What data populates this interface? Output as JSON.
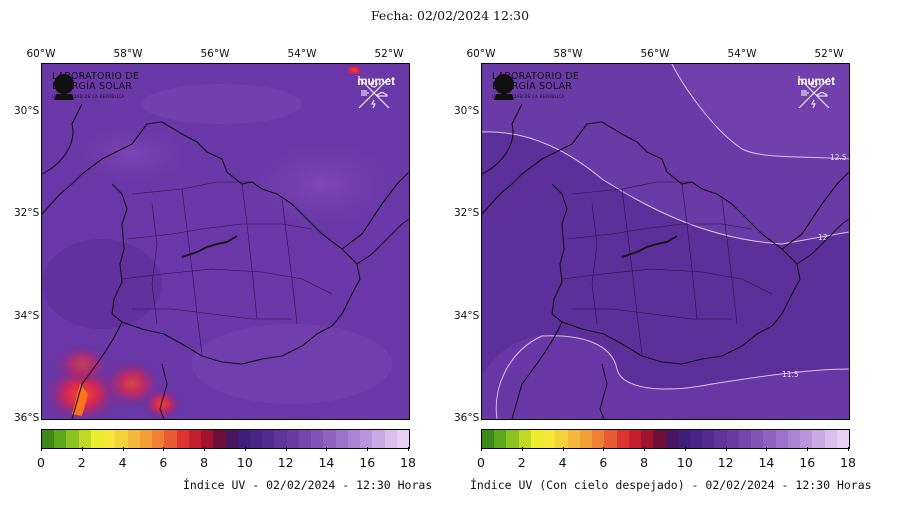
{
  "header": {
    "date_label": "Fecha: 02/02/2024 12:30"
  },
  "longitudes": [
    "60°W",
    "58°W",
    "56°W",
    "54°W",
    "52°W"
  ],
  "latitudes": [
    "30°S",
    "32°S",
    "34°S",
    "36°S"
  ],
  "logos": {
    "les_line1": "LABORATORIO DE",
    "les_line2": "ENERGÍA SOLAR",
    "les_line3": "UNIVERSIDAD DE LA REPÚBLICA",
    "inumet": "inumet"
  },
  "colorbar": {
    "ticks": [
      "0",
      "2",
      "4",
      "6",
      "8",
      "10",
      "12",
      "14",
      "16",
      "18"
    ],
    "colors": [
      "#3d8a1a",
      "#5ea81d",
      "#8cc21f",
      "#c2d826",
      "#ecec2e",
      "#f6e63a",
      "#f5d23a",
      "#f4b93a",
      "#f29d36",
      "#ee7f33",
      "#e85a31",
      "#dc3530",
      "#c41f2e",
      "#a3142c",
      "#6e0f3a",
      "#4a1460",
      "#3f1f7a",
      "#4a2486",
      "#552b90",
      "#5f3398",
      "#6a3ca2",
      "#7647ad",
      "#8254b7",
      "#8f62c1",
      "#9d72ca",
      "#ab83d3",
      "#bb95dc",
      "#cba9e5",
      "#dabdec",
      "#e8d0f3"
    ]
  },
  "panels": [
    {
      "caption": "Índice UV - 02/02/2024 - 12:30 Horas",
      "contours": []
    },
    {
      "caption": "Índice UV (Con cielo despejado) - 02/02/2024 - 12:30 Horas",
      "contours": [
        "12.5",
        "12",
        "11.5"
      ]
    }
  ]
}
